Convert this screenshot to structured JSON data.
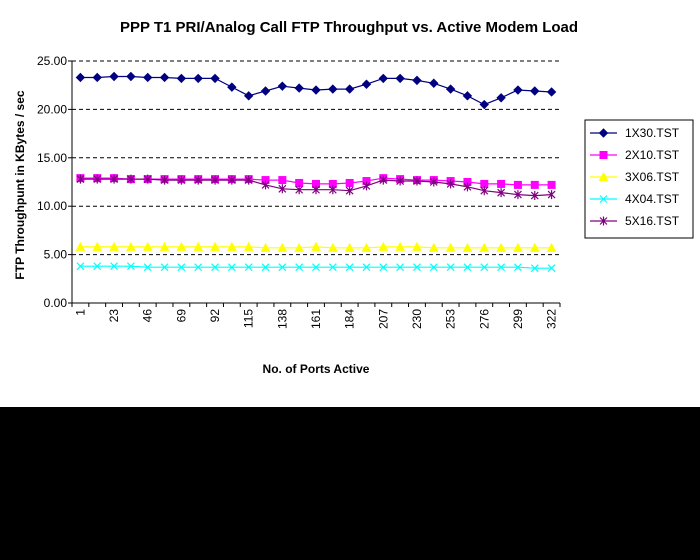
{
  "chart_data": {
    "type": "line",
    "title": "PPP T1 PRI/Analog Call FTP Throughput vs. Active Modem Load",
    "xlabel": "No. of Ports Active",
    "ylabel": "FTP Throughpunt in KBytes / sec",
    "ylim": [
      0,
      25
    ],
    "yticks": [
      "0.00",
      "5.00",
      "10.00",
      "15.00",
      "20.00",
      "25.00"
    ],
    "x": [
      1,
      12,
      23,
      34,
      46,
      57,
      69,
      80,
      92,
      103,
      115,
      126,
      138,
      149,
      161,
      172,
      184,
      195,
      207,
      218,
      230,
      241,
      253,
      264,
      276,
      287,
      299,
      310,
      322
    ],
    "xtick_labels": [
      "1",
      "23",
      "46",
      "69",
      "92",
      "115",
      "138",
      "161",
      "184",
      "207",
      "230",
      "253",
      "276",
      "299",
      "322"
    ],
    "grid": "horizontal-dashed",
    "legend_position": "right",
    "series": [
      {
        "name": "1X30.TST",
        "color": "#000080",
        "marker": "diamond",
        "values": [
          23.3,
          23.3,
          23.4,
          23.4,
          23.3,
          23.3,
          23.2,
          23.2,
          23.2,
          22.3,
          21.4,
          21.9,
          22.4,
          22.2,
          22.0,
          22.1,
          22.1,
          22.6,
          23.2,
          23.2,
          23.0,
          22.7,
          22.1,
          21.4,
          20.5,
          21.2,
          22.0,
          21.9,
          21.8
        ]
      },
      {
        "name": "2X10.TST",
        "color": "#ff00ff",
        "marker": "square",
        "values": [
          12.9,
          12.9,
          12.9,
          12.8,
          12.8,
          12.8,
          12.8,
          12.8,
          12.8,
          12.8,
          12.8,
          12.7,
          12.7,
          12.4,
          12.3,
          12.3,
          12.4,
          12.6,
          12.9,
          12.8,
          12.7,
          12.7,
          12.6,
          12.5,
          12.3,
          12.3,
          12.2,
          12.2,
          12.2
        ]
      },
      {
        "name": "3X06.TST",
        "color": "#ffff00",
        "marker": "triangle",
        "values": [
          5.8,
          5.8,
          5.8,
          5.8,
          5.8,
          5.8,
          5.8,
          5.8,
          5.8,
          5.8,
          5.8,
          5.7,
          5.7,
          5.7,
          5.8,
          5.7,
          5.7,
          5.7,
          5.8,
          5.8,
          5.8,
          5.7,
          5.7,
          5.7,
          5.7,
          5.7,
          5.7,
          5.7,
          5.7
        ]
      },
      {
        "name": "4X04.TST",
        "color": "#00ffff",
        "marker": "x",
        "values": [
          3.8,
          3.8,
          3.8,
          3.8,
          3.7,
          3.7,
          3.7,
          3.7,
          3.7,
          3.7,
          3.7,
          3.7,
          3.7,
          3.7,
          3.7,
          3.7,
          3.7,
          3.7,
          3.7,
          3.7,
          3.7,
          3.7,
          3.7,
          3.7,
          3.7,
          3.7,
          3.7,
          3.6,
          3.6
        ]
      },
      {
        "name": "5X16.TST",
        "color": "#800080",
        "marker": "star",
        "values": [
          12.8,
          12.8,
          12.8,
          12.8,
          12.8,
          12.7,
          12.7,
          12.7,
          12.7,
          12.7,
          12.7,
          12.2,
          11.8,
          11.7,
          11.7,
          11.7,
          11.6,
          12.1,
          12.7,
          12.6,
          12.6,
          12.5,
          12.3,
          12.0,
          11.6,
          11.4,
          11.2,
          11.1,
          11.2
        ]
      }
    ]
  }
}
